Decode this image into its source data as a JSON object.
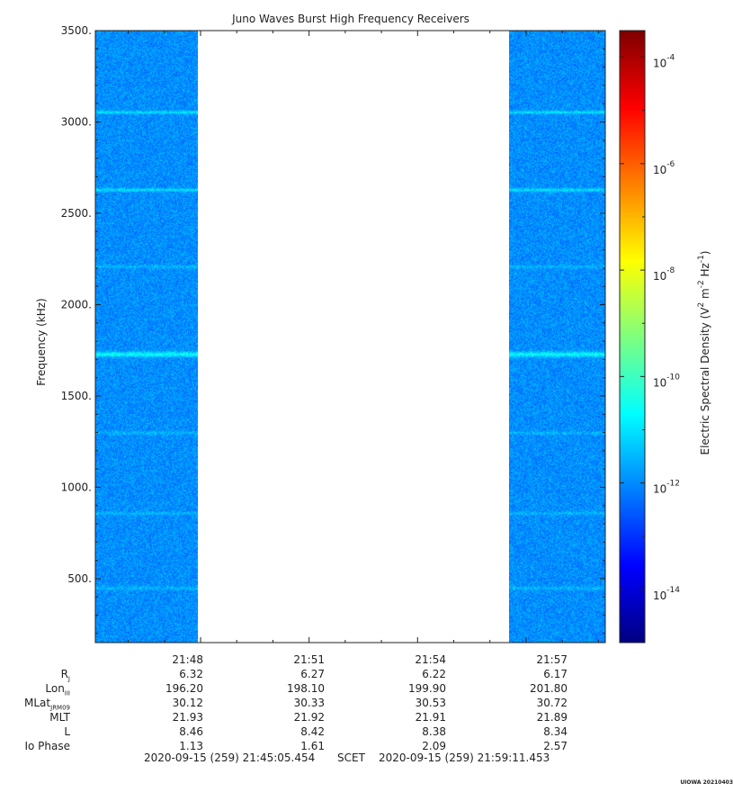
{
  "chart_data": {
    "type": "heatmap",
    "title": "Juno Waves Burst High Frequency Receivers",
    "ylabel": "Frequency (kHz)",
    "ylim": [
      150,
      3500
    ],
    "yticks": [
      "500.",
      "1000.",
      "1500.",
      "2000.",
      "2500.",
      "3000.",
      "3500."
    ],
    "ytick_values": [
      500,
      1000,
      1500,
      2000,
      2500,
      3000,
      3500
    ],
    "xticks": [
      "21:48",
      "21:51",
      "21:54",
      "21:57"
    ],
    "xtick_minutes": [
      48,
      51,
      54,
      57
    ],
    "xrange_minutes": [
      45.09,
      59.19
    ],
    "data_segments_minutes": [
      [
        45.09,
        47.93
      ],
      [
        56.52,
        59.19
      ]
    ],
    "emission_lines_khz": [
      1730,
      3055,
      2630,
      860,
      450,
      1300,
      2210
    ],
    "background_log_density": -11.9,
    "colorbar": {
      "label": "Electric Spectral Density (V² m⁻² Hz⁻¹)",
      "label_parts": [
        "Electric Spectral Density (V",
        "2",
        " m",
        "-2",
        " Hz",
        "-1",
        ")"
      ],
      "range_log": [
        -15,
        -3.5
      ],
      "ticks": [
        {
          "base": "10",
          "exp": "-4",
          "value": -4
        },
        {
          "base": "10",
          "exp": "-6",
          "value": -6
        },
        {
          "base": "10",
          "exp": "-8",
          "value": -8
        },
        {
          "base": "10",
          "exp": "-10",
          "value": -10
        },
        {
          "base": "10",
          "exp": "-12",
          "value": -12
        },
        {
          "base": "10",
          "exp": "-14",
          "value": -14
        }
      ]
    }
  },
  "ephemeris": {
    "rows": [
      {
        "label": "R",
        "sub": "J",
        "values": [
          "6.32",
          "6.27",
          "6.22",
          "6.17"
        ]
      },
      {
        "label": "Lon",
        "sub": "III",
        "values": [
          "196.20",
          "198.10",
          "199.90",
          "201.80"
        ]
      },
      {
        "label": "MLat",
        "sub": "JRM09",
        "values": [
          "30.12",
          "30.33",
          "30.53",
          "30.72"
        ]
      },
      {
        "label": "MLT",
        "sub": "",
        "values": [
          "21.93",
          "21.92",
          "21.91",
          "21.89"
        ]
      },
      {
        "label": "L",
        "sub": "",
        "values": [
          "8.46",
          "8.42",
          "8.38",
          "8.34"
        ]
      },
      {
        "label": "Io Phase",
        "sub": "",
        "values": [
          "1.13",
          "1.61",
          "2.09",
          "2.57"
        ]
      }
    ]
  },
  "footer": {
    "start": "2020-09-15 (259) 21:45:05.454",
    "mid": "SCET",
    "end": "2020-09-15 (259) 21:59:11.453"
  },
  "stamp": "UIOWA 20210403"
}
